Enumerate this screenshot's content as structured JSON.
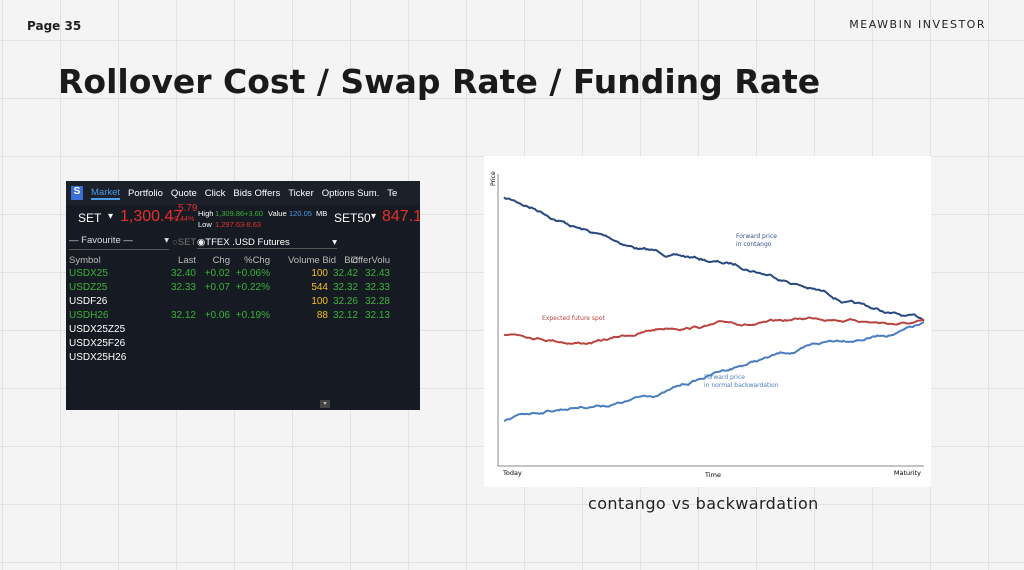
{
  "header": {
    "page": "Page 35",
    "brand": "MEAWBIN INVESTOR",
    "title": "Rollover Cost / Swap Rate / Funding Rate"
  },
  "screenshot": {
    "tabs": [
      "Market",
      "Portfolio",
      "Quote",
      "Click",
      "Bids Offers",
      "Ticker",
      "Options Sum.",
      "Te"
    ],
    "index": {
      "name": "SET",
      "value": "1,300.47",
      "change": "5.79",
      "pct": "-0.44%",
      "high_label": "High",
      "high": "1,309.86",
      "high_chg": "+3.60",
      "value_label": "Value",
      "value_amt": "120.05",
      "unit": "MB",
      "low_label": "Low",
      "low": "1,297.63",
      "low_chg": "-8.63",
      "index2": "SET50",
      "value2": "847.1"
    },
    "favourite": "— Favourite —",
    "radio1": "SET",
    "radio2": "TFEX .USD Futures",
    "table": {
      "headers": [
        "Symbol",
        "Last",
        "Chg",
        "%Chg",
        "Volume Bid",
        "Bid",
        "OfferVolu"
      ],
      "rows": [
        [
          "USDX25",
          "32.40",
          "+0.02",
          "+0.06%",
          "100",
          "32.42",
          "32.43"
        ],
        [
          "USDZ25",
          "32.33",
          "+0.07",
          "+0.22%",
          "544",
          "32.32",
          "32.33"
        ],
        [
          "USDF26",
          "",
          "",
          "",
          "100",
          "32.26",
          "32.28"
        ],
        [
          "USDH26",
          "32.12",
          "+0.06",
          "+0.19%",
          "88",
          "32.12",
          "32.13"
        ],
        [
          "USDX25Z25",
          "",
          "",
          "",
          "",
          "",
          ""
        ],
        [
          "USDX25F26",
          "",
          "",
          "",
          "",
          "",
          ""
        ],
        [
          "USDX25H26",
          "",
          "",
          "",
          "",
          "",
          ""
        ]
      ]
    }
  },
  "figure": {
    "y_label": "Price",
    "x_start": "Today",
    "x_label": "Time",
    "x_end": "Maturity",
    "contango": "Forward price in contango",
    "spot": "Expected future spot",
    "backwardation": "Forward price in normal backwardation",
    "caption": "contango vs backwardation"
  }
}
